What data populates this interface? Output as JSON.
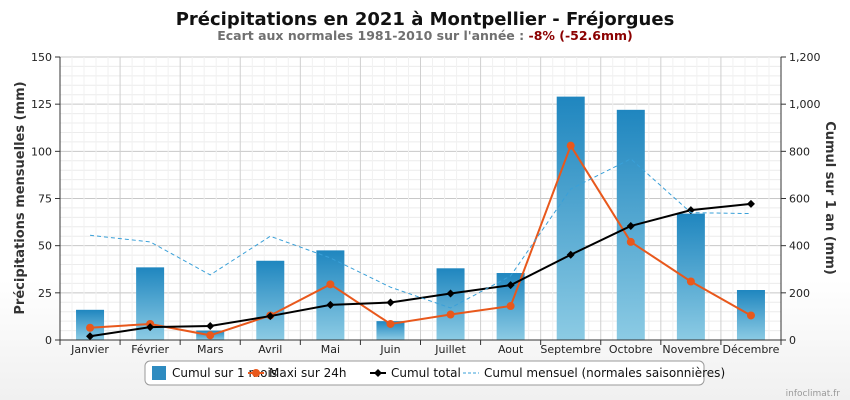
{
  "chart_data": {
    "type": "bar",
    "title": "Précipitations en 2021 à Montpellier - Fréjorgues",
    "subtitle_prefix": "Ecart aux normales 1981-2010 sur l'année : ",
    "subtitle_highlight": "-8% (-52.6mm)",
    "categories": [
      "Janvier",
      "Février",
      "Mars",
      "Avril",
      "Mai",
      "Juin",
      "Juillet",
      "Aout",
      "Septembre",
      "Octobre",
      "Novembre",
      "Décembre"
    ],
    "ylabel_left": "Précipitations mensuelles (mm)",
    "ylabel_right": "Cumul sur 1 an (mm)",
    "ylim_left": [
      0,
      150
    ],
    "yticks_left": [
      0,
      25,
      50,
      75,
      100,
      125,
      150
    ],
    "ylim_right": [
      0,
      1200
    ],
    "yticks_right": [
      "0",
      "200",
      "400",
      "600",
      "800",
      "1,000",
      "1,200"
    ],
    "grid": true,
    "legend_position": "bottom",
    "series": [
      {
        "name": "Cumul sur 1 mois",
        "type": "bar",
        "axis": "left",
        "color": "#2e8bc0",
        "values": [
          16,
          38.5,
          5,
          42,
          47.5,
          10,
          38,
          35.5,
          129,
          122,
          67,
          26.5
        ]
      },
      {
        "name": "Maxi sur 24h",
        "type": "line",
        "axis": "left",
        "color": "#e8581c",
        "values": [
          6.5,
          8.5,
          2.5,
          13,
          29.5,
          8.5,
          13.5,
          18,
          103,
          52,
          31,
          13
        ]
      },
      {
        "name": "Cumul total",
        "type": "line",
        "axis": "right",
        "color": "#000000",
        "values": [
          16,
          54.5,
          59.5,
          101.5,
          149,
          159,
          197,
          232.5,
          361.5,
          483.5,
          550.5,
          577
        ]
      },
      {
        "name": "Cumul mensuel (normales saisonnières)",
        "type": "line",
        "axis": "left",
        "dashed": true,
        "color": "#3aa0d8",
        "values": [
          55.5,
          52,
          34.5,
          55,
          43.5,
          28,
          17,
          34,
          80,
          96,
          67.5,
          67
        ]
      }
    ],
    "credit": "infoclimat.fr"
  }
}
